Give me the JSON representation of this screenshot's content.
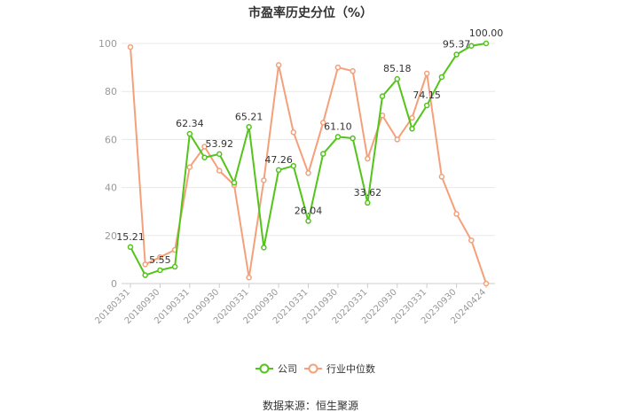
{
  "title": "市盈率历史分位（%）",
  "source": "数据来源：恒生聚源",
  "colors": {
    "company": "#52c41a",
    "industry": "#f5a07a",
    "grid": "#e8e8e8",
    "axis": "#cccccc",
    "tick_text": "#999999",
    "label_text": "#333333"
  },
  "chart_data": {
    "type": "line",
    "title": "市盈率历史分位（%）",
    "xlabel": "",
    "ylabel": "",
    "ylim": [
      0,
      100
    ],
    "yticks": [
      0,
      20,
      40,
      60,
      80,
      100
    ],
    "grid": true,
    "legend_position": "bottom-center",
    "x_tick_labels": [
      "20180331",
      "20180930",
      "20190331",
      "20190930",
      "20200331",
      "20200930",
      "20210331",
      "20210930",
      "20220331",
      "20220930",
      "20230331",
      "20230930",
      "20240424"
    ],
    "x_tick_indices": [
      0,
      2,
      4,
      6,
      8,
      10,
      12,
      14,
      16,
      18,
      20,
      22,
      24
    ],
    "series": [
      {
        "name": "公司",
        "values": [
          15.21,
          3.5,
          5.55,
          7,
          62.34,
          52.5,
          53.92,
          42,
          65.21,
          15,
          47.26,
          49,
          26.04,
          54,
          61.1,
          60.5,
          33.62,
          78,
          85.18,
          64.5,
          74.15,
          86,
          95.37,
          99,
          100.0
        ],
        "labels": {
          "0": "15.21",
          "2": "5.55",
          "4": "62.34",
          "6": "53.92",
          "8": "65.21",
          "10": "47.26",
          "12": "26.04",
          "14": "61.10",
          "16": "33.62",
          "18": "85.18",
          "20": "74.15",
          "22": "95.37",
          "24": "100.00"
        }
      },
      {
        "name": "行业中位数",
        "values": [
          98.5,
          8,
          11,
          14,
          48.5,
          57,
          47,
          41,
          2.5,
          43,
          91,
          63,
          46,
          67,
          90,
          88.5,
          52,
          70,
          60,
          69,
          87.5,
          44.5,
          29,
          18,
          0
        ]
      }
    ]
  }
}
